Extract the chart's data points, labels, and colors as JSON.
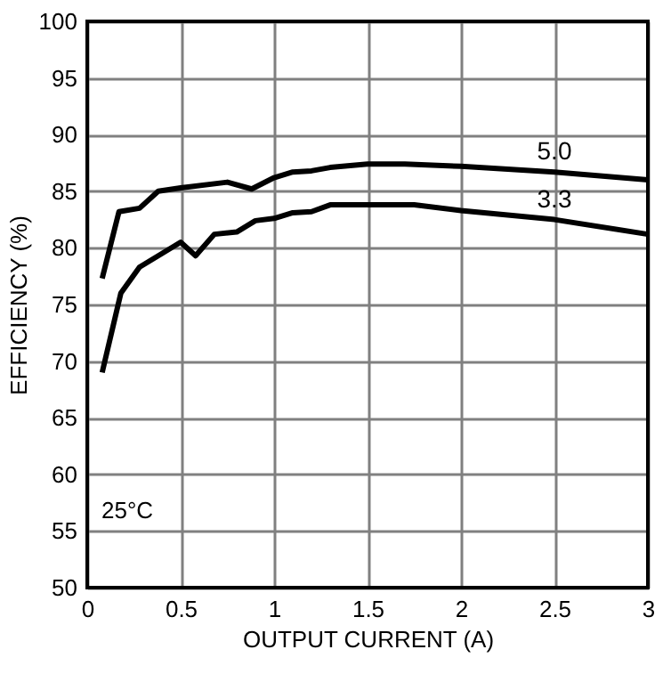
{
  "chart_data": {
    "type": "line",
    "xlabel": "OUTPUT CURRENT (A)",
    "ylabel": "EFFICIENCY (%)",
    "xlim": [
      0,
      3
    ],
    "ylim": [
      50,
      100
    ],
    "xticks": [
      0,
      0.5,
      1,
      1.5,
      2,
      2.5,
      3
    ],
    "yticks": [
      50,
      55,
      60,
      65,
      70,
      75,
      80,
      85,
      90,
      95,
      100
    ],
    "grid": true,
    "marker": "none",
    "line_style": "solid",
    "annotations": [
      "25°C"
    ],
    "series": [
      {
        "name": "5.0",
        "color": "#000000",
        "x": [
          0.08,
          0.17,
          0.28,
          0.38,
          0.5,
          0.75,
          0.88,
          1.0,
          1.1,
          1.2,
          1.3,
          1.5,
          1.7,
          2.0,
          2.5,
          3.0
        ],
        "values": [
          77.3,
          83.2,
          83.5,
          85.0,
          85.3,
          85.8,
          85.2,
          86.2,
          86.7,
          86.8,
          87.1,
          87.4,
          87.4,
          87.2,
          86.7,
          86.0
        ]
      },
      {
        "name": "3.3",
        "color": "#000000",
        "x": [
          0.08,
          0.18,
          0.28,
          0.4,
          0.5,
          0.58,
          0.68,
          0.8,
          0.9,
          1.0,
          1.1,
          1.2,
          1.3,
          1.5,
          1.75,
          2.0,
          2.5,
          3.0
        ],
        "values": [
          69.0,
          76.0,
          78.3,
          79.5,
          80.5,
          79.3,
          81.2,
          81.4,
          82.4,
          82.6,
          83.1,
          83.2,
          83.8,
          83.8,
          83.8,
          83.3,
          82.5,
          81.2
        ]
      }
    ]
  }
}
